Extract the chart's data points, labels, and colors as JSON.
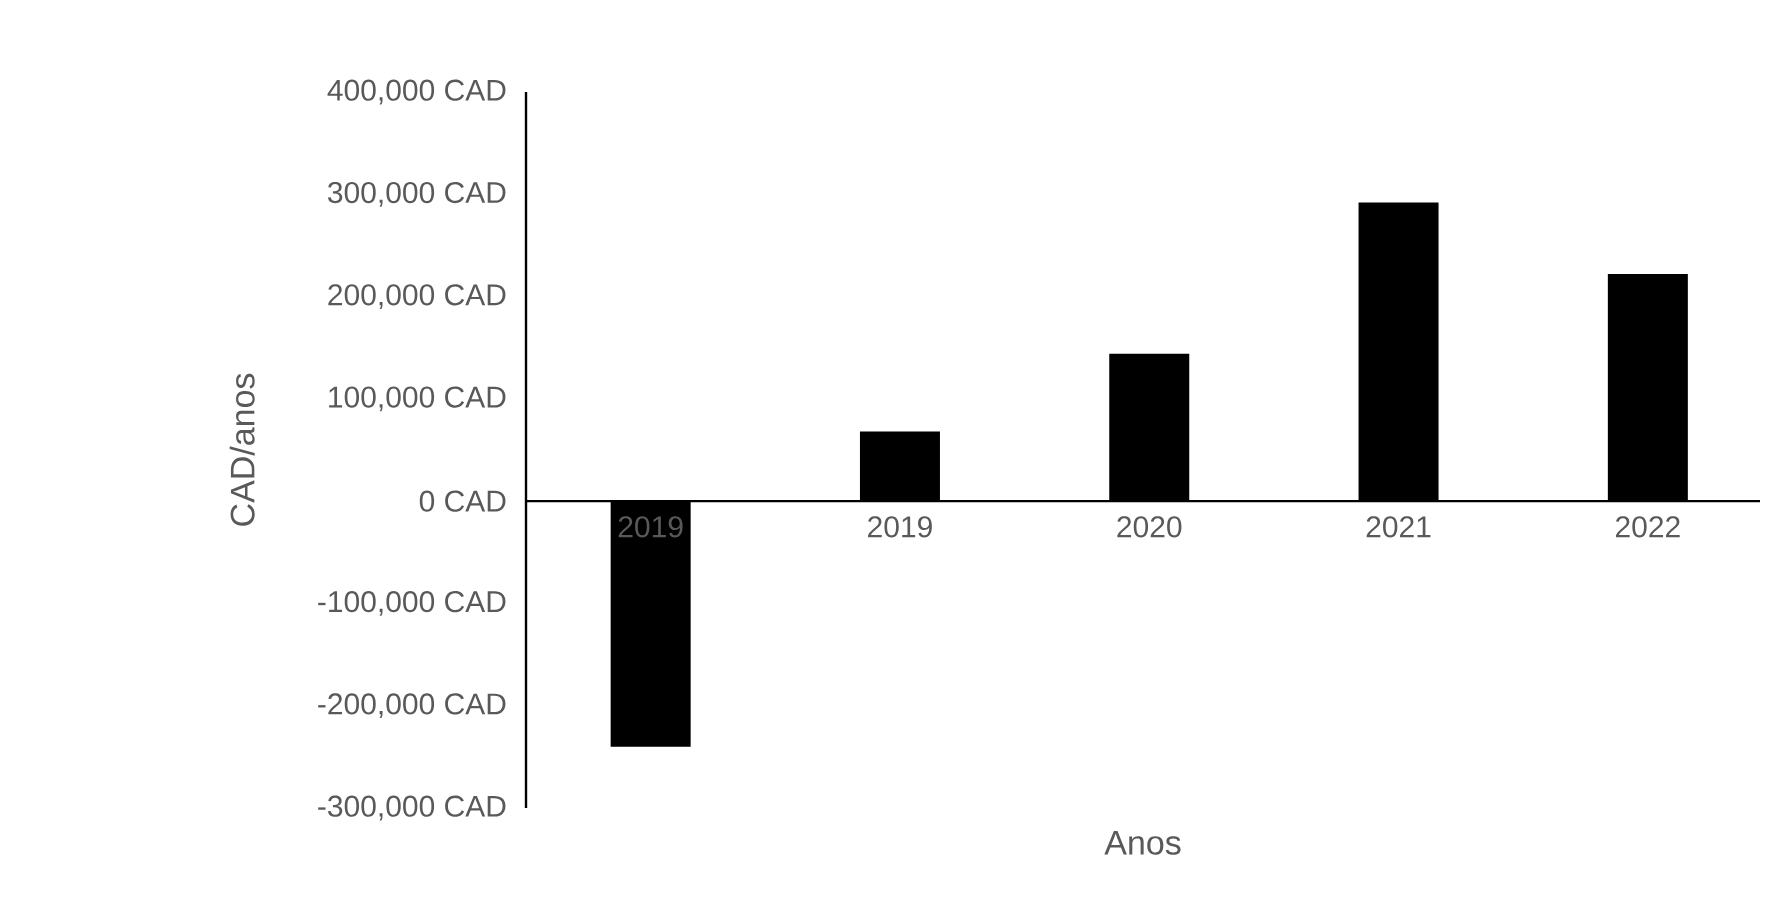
{
  "chart_data": {
    "type": "bar",
    "xlabel": "Anos",
    "ylabel": "CAD/anos",
    "categories": [
      "2019",
      "2019",
      "2020",
      "2021",
      "2022"
    ],
    "values": [
      -240000,
      68000,
      144000,
      292000,
      222000
    ],
    "color": "#000000",
    "ylim": [
      -300000,
      400000
    ],
    "yticks": [
      {
        "value": -300000,
        "label": "-300,000 CAD"
      },
      {
        "value": -200000,
        "label": "-200,000 CAD"
      },
      {
        "value": -100000,
        "label": "-100,000 CAD"
      },
      {
        "value": 0,
        "label": "0 CAD"
      },
      {
        "value": 100000,
        "label": "100,000 CAD"
      },
      {
        "value": 200000,
        "label": "200,000 CAD"
      },
      {
        "value": 300000,
        "label": "300,000 CAD"
      },
      {
        "value": 400000,
        "label": "400,000 CAD"
      }
    ]
  }
}
